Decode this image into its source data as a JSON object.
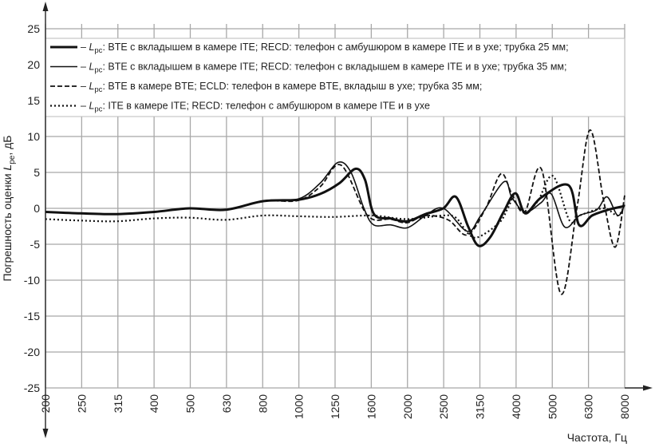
{
  "chart_data": {
    "type": "line",
    "title": "",
    "xlabel": "Частота, Гц",
    "ylabel": {
      "prefix": "Погрешность оценки ",
      "var": "L",
      "sub": "pe",
      "suffix": ", дБ"
    },
    "x_scale": "log",
    "x_ticks": [
      200,
      250,
      315,
      400,
      500,
      630,
      800,
      1000,
      1250,
      1600,
      2000,
      2500,
      3150,
      4000,
      5000,
      6300,
      8000
    ],
    "y_ticks": [
      25,
      20,
      15,
      10,
      5,
      0,
      -5,
      -10,
      -15,
      -20,
      -25
    ],
    "xlim": [
      200,
      8000
    ],
    "ylim": [
      -25,
      25
    ],
    "grid": true,
    "legend_placement": "top",
    "series": [
      {
        "name": "Lpc BTE insert ITE RECD ambushur tube 25",
        "legend": {
          "dash": "– ",
          "var": "L",
          "sub": "pc",
          "text": ": BTE с вкладышем в камере ITE; RECD: телефон с амбушюром в камере ITE и в ухе; трубка 25 мм;"
        },
        "style": "thick",
        "x": [
          200,
          250,
          315,
          400,
          500,
          630,
          800,
          1000,
          1150,
          1300,
          1440,
          1530,
          1620,
          1800,
          2000,
          2250,
          2520,
          2730,
          2950,
          3150,
          3400,
          3700,
          3990,
          4250,
          4700,
          5600,
          5980,
          6500,
          7200,
          7950
        ],
        "y": [
          -0.5,
          -0.7,
          -0.8,
          -0.5,
          0,
          -0.2,
          1,
          1.2,
          2,
          3.5,
          5.5,
          4,
          -0.8,
          -1.4,
          -1.8,
          -0.8,
          0,
          1.6,
          -2.5,
          -5.2,
          -4,
          -0.5,
          2.1,
          -0.7,
          1.5,
          3.2,
          -2.3,
          -1,
          -0.2,
          0.3
        ]
      },
      {
        "name": "Lpc BTE insert ITE RECD insert tube 35",
        "legend": {
          "dash": "– ",
          "var": "L",
          "sub": "pc",
          "text": ": BTE с вкладышем в камере ITE; RECD: телефон с вкладышем в камере ITE и в ухе; трубка 35 мм;"
        },
        "style": "solid",
        "x": [
          200,
          250,
          315,
          400,
          500,
          630,
          800,
          1000,
          1150,
          1290,
          1400,
          1520,
          1617,
          1800,
          2006,
          2250,
          2521,
          2937,
          3200,
          3710,
          3900,
          4250,
          4700,
          5014,
          5460,
          6000,
          6700,
          7150,
          7650,
          8000
        ],
        "y": [
          -0.5,
          -0.7,
          -0.8,
          -0.5,
          0,
          -0.2,
          1,
          1.3,
          3.5,
          6.4,
          5,
          0,
          -2.3,
          -2.3,
          -2.7,
          -1,
          0,
          -3.2,
          -1,
          3.7,
          1.5,
          -0.5,
          0.8,
          2,
          -2.6,
          -1,
          -0.2,
          1.6,
          -1,
          0.5
        ]
      },
      {
        "name": "Lpc BTE in BTE ECLD tube 35",
        "legend": {
          "dash": "– ",
          "var": "L",
          "sub": "pc",
          "text": ": BTE в камере BTE; ECLD: телефон в камере BTE, вкладыш в ухе; трубка 35 мм;"
        },
        "style": "dashed",
        "x": [
          200,
          250,
          315,
          400,
          500,
          630,
          800,
          1000,
          1150,
          1315,
          1555,
          1800,
          2000,
          2250,
          2599,
          2937,
          3300,
          3637,
          3900,
          4236,
          4714,
          5327,
          5900,
          6417,
          7000,
          7530,
          8000
        ],
        "y": [
          -0.5,
          -0.7,
          -0.8,
          -0.5,
          0,
          -0.2,
          1,
          1.1,
          3,
          6,
          -1,
          -1.5,
          -2,
          -1,
          -1.6,
          -3.7,
          0,
          4.8,
          2,
          -0.5,
          5.4,
          -11.9,
          0,
          10.9,
          1,
          -5.4,
          1.8
        ]
      },
      {
        "name": "Lpc ITE in ITE RECD ambushur",
        "legend": {
          "dash": "– ",
          "var": "L",
          "sub": "pc",
          "text": ": ITE в камере ITE; RECD: телефон с амбушюром в камере ITE и в ухе"
        },
        "style": "dotted",
        "x": [
          200,
          250,
          315,
          400,
          500,
          630,
          800,
          1000,
          1250,
          1600,
          2000,
          2500,
          2730,
          2950,
          3150,
          3600,
          3800,
          4000,
          4236,
          4600,
          5066,
          5630,
          6000,
          7000,
          7650,
          8000
        ],
        "y": [
          -1.5,
          -1.7,
          -1.8,
          -1.4,
          -1.3,
          -1.6,
          -1,
          -1.1,
          -1.2,
          -1,
          -1.5,
          -1,
          -1.3,
          -3.5,
          -4,
          -2,
          0,
          2,
          -0.5,
          1,
          4.5,
          -1.7,
          -1,
          0,
          -1,
          0.5
        ]
      }
    ]
  }
}
